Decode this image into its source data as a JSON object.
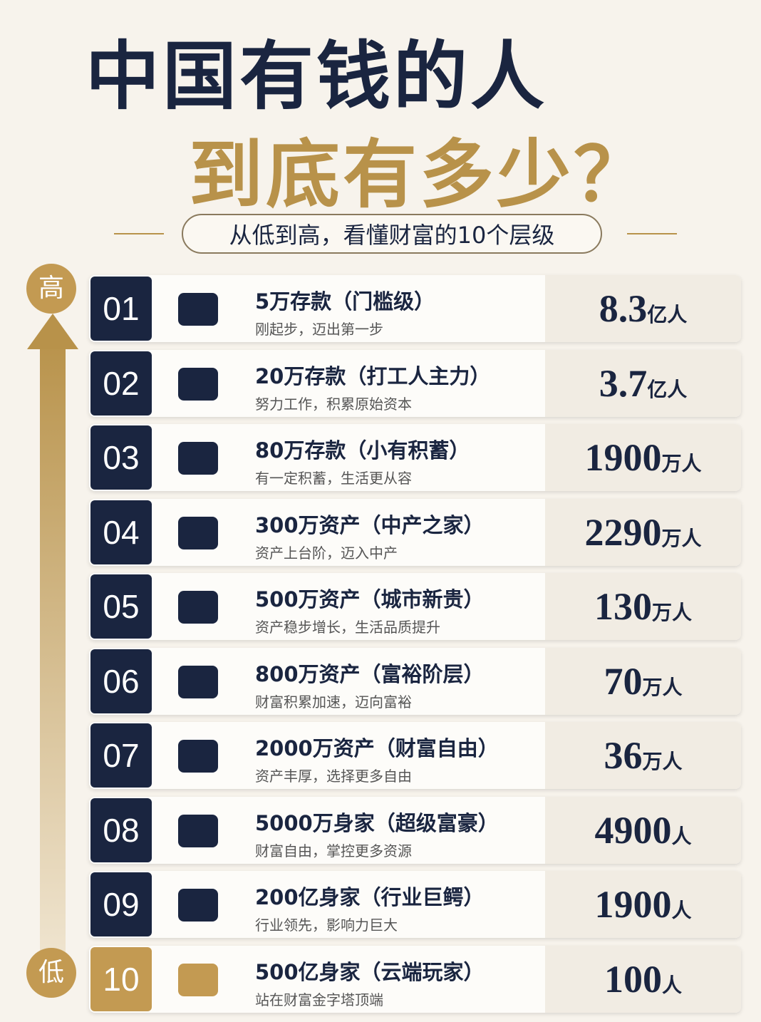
{
  "header": {
    "title_line1": "中国有钱的人",
    "title_line2": "到底有多少？",
    "subtitle": "从低到高，看懂财富的10个层级"
  },
  "side": {
    "top": "高",
    "bottom": "低"
  },
  "rows": [
    {
      "num": "01",
      "title": "5万存款（门槛级）",
      "desc": "刚起步，迈出第一步",
      "count": "8.3",
      "unit": "亿人"
    },
    {
      "num": "02",
      "title": "20万存款（打工人主力）",
      "desc": "努力工作，积累原始资本",
      "count": "3.7",
      "unit": "亿人"
    },
    {
      "num": "03",
      "title": "80万存款（小有积蓄）",
      "desc": "有一定积蓄，生活更从容",
      "count": "1900",
      "unit": "万人"
    },
    {
      "num": "04",
      "title": "300万资产（中产之家）",
      "desc": "资产上台阶，迈入中产",
      "count": "2290",
      "unit": "万人"
    },
    {
      "num": "05",
      "title": "500万资产（城市新贵）",
      "desc": "资产稳步增长，生活品质提升",
      "count": "130",
      "unit": "万人"
    },
    {
      "num": "06",
      "title": "800万资产（富裕阶层）",
      "desc": "财富积累加速，迈向富裕",
      "count": "70",
      "unit": "万人"
    },
    {
      "num": "07",
      "title": "2000万资产（财富自由）",
      "desc": "资产丰厚，选择更多自由",
      "count": "36",
      "unit": "万人"
    },
    {
      "num": "08",
      "title": "5000万身家（超级富豪）",
      "desc": "财富自由，掌控更多资源",
      "count": "4900",
      "unit": "人"
    },
    {
      "num": "09",
      "title": "200亿身家（行业巨鳄）",
      "desc": "行业领先，影响力巨大",
      "count": "1900",
      "unit": "人"
    },
    {
      "num": "10",
      "title": "500亿身家（云端玩家）",
      "desc": "站在财富金字塔顶端",
      "count": "100",
      "unit": "人"
    }
  ]
}
